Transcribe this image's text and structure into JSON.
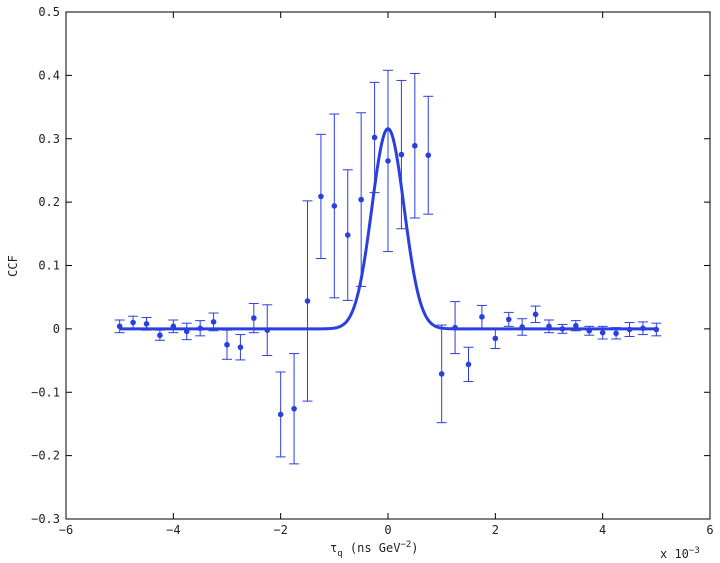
{
  "chart_data": {
    "type": "scatter",
    "title": "",
    "xlabel": "τ",
    "xlabel_sub": "q",
    "xlabel_units": " (ns GeV",
    "xlabel_exp": "−2",
    "xlabel_close": ")",
    "ylabel": "CCF",
    "xlim": [
      -6,
      6
    ],
    "ylim": [
      -0.3,
      0.5
    ],
    "x_ticks": [
      "−6",
      "−4",
      "−2",
      "0",
      "2",
      "4",
      "6"
    ],
    "x_tick_values": [
      -6,
      -4,
      -2,
      0,
      2,
      4,
      6
    ],
    "y_ticks": [
      "−0.3",
      "−0.2",
      "−0.1",
      "0",
      "0.1",
      "0.2",
      "0.3",
      "0.4",
      "0.5"
    ],
    "y_tick_values": [
      -0.3,
      -0.2,
      -0.1,
      0,
      0.1,
      0.2,
      0.3,
      0.4,
      0.5
    ],
    "x_multiplier_prefix": "x 10",
    "x_multiplier_exp": "−3",
    "grid": false,
    "color": "#2a3fe0",
    "series": [
      {
        "type": "scatter-errorbar",
        "points": [
          {
            "x": -5.0,
            "y": 0.004,
            "err": 0.01
          },
          {
            "x": -4.75,
            "y": 0.01,
            "err": 0.01
          },
          {
            "x": -4.5,
            "y": 0.008,
            "err": 0.01
          },
          {
            "x": -4.25,
            "y": -0.01,
            "err": 0.008
          },
          {
            "x": -4.0,
            "y": 0.004,
            "err": 0.01
          },
          {
            "x": -3.75,
            "y": -0.004,
            "err": 0.013
          },
          {
            "x": -3.5,
            "y": 0.001,
            "err": 0.012
          },
          {
            "x": -3.25,
            "y": 0.011,
            "err": 0.014
          },
          {
            "x": -3.0,
            "y": -0.025,
            "err": 0.023
          },
          {
            "x": -2.75,
            "y": -0.029,
            "err": 0.02
          },
          {
            "x": -2.5,
            "y": 0.017,
            "err": 0.023
          },
          {
            "x": -2.25,
            "y": -0.002,
            "err": 0.04
          },
          {
            "x": -2.0,
            "y": -0.135,
            "err": 0.067
          },
          {
            "x": -1.75,
            "y": -0.126,
            "err": 0.087
          },
          {
            "x": -1.5,
            "y": 0.044,
            "err": 0.158
          },
          {
            "x": -1.25,
            "y": 0.209,
            "err": 0.098
          },
          {
            "x": -1.0,
            "y": 0.194,
            "err": 0.145
          },
          {
            "x": -0.75,
            "y": 0.148,
            "err": 0.103
          },
          {
            "x": -0.5,
            "y": 0.204,
            "err": 0.137
          },
          {
            "x": -0.25,
            "y": 0.302,
            "err": 0.087
          },
          {
            "x": 0.0,
            "y": 0.265,
            "err": 0.143
          },
          {
            "x": 0.25,
            "y": 0.275,
            "err": 0.117
          },
          {
            "x": 0.5,
            "y": 0.289,
            "err": 0.114
          },
          {
            "x": 0.75,
            "y": 0.274,
            "err": 0.093
          },
          {
            "x": 1.0,
            "y": -0.071,
            "err": 0.077
          },
          {
            "x": 1.25,
            "y": 0.002,
            "err": 0.041
          },
          {
            "x": 1.5,
            "y": -0.056,
            "err": 0.027
          },
          {
            "x": 1.75,
            "y": 0.019,
            "err": 0.018
          },
          {
            "x": 2.0,
            "y": -0.015,
            "err": 0.016
          },
          {
            "x": 2.25,
            "y": 0.015,
            "err": 0.011
          },
          {
            "x": 2.5,
            "y": 0.003,
            "err": 0.013
          },
          {
            "x": 2.75,
            "y": 0.023,
            "err": 0.013
          },
          {
            "x": 3.0,
            "y": 0.004,
            "err": 0.01
          },
          {
            "x": 3.25,
            "y": 0.0,
            "err": 0.007
          },
          {
            "x": 3.5,
            "y": 0.005,
            "err": 0.008
          },
          {
            "x": 3.75,
            "y": -0.003,
            "err": 0.007
          },
          {
            "x": 4.0,
            "y": -0.006,
            "err": 0.01
          },
          {
            "x": 4.25,
            "y": -0.007,
            "err": 0.009
          },
          {
            "x": 4.5,
            "y": -0.001,
            "err": 0.011
          },
          {
            "x": 4.75,
            "y": 0.001,
            "err": 0.01
          },
          {
            "x": 5.0,
            "y": -0.001,
            "err": 0.01
          }
        ]
      },
      {
        "type": "line",
        "fit": "gaussian",
        "amplitude": 0.316,
        "center": 0.0,
        "sigma": 0.3,
        "x_range": [
          -5,
          5
        ]
      }
    ]
  }
}
